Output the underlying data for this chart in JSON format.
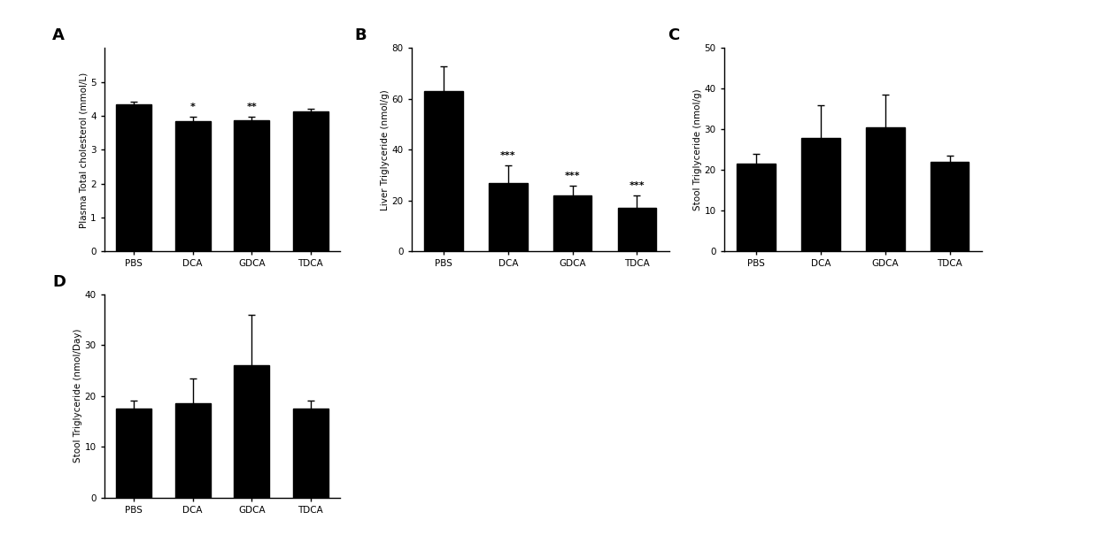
{
  "panel_A": {
    "label": "A",
    "categories": [
      "PBS",
      "DCA",
      "GDCA",
      "TDCA"
    ],
    "values": [
      4.35,
      3.85,
      3.88,
      4.12
    ],
    "errors": [
      0.08,
      0.12,
      0.1,
      0.08
    ],
    "ylabel": "Plasma Total cholesterol (mmol/L)",
    "ylim": [
      0,
      6
    ],
    "yticks": [
      0,
      1,
      2,
      3,
      4,
      5
    ],
    "significance": [
      "",
      "*",
      "**",
      ""
    ]
  },
  "panel_B": {
    "label": "B",
    "categories": [
      "PBS",
      "DCA",
      "GDCA",
      "TDCA"
    ],
    "values": [
      63,
      27,
      22,
      17
    ],
    "errors": [
      10,
      7,
      4,
      5
    ],
    "ylabel": "Liver Triglyceride (nmol/g)",
    "ylim": [
      0,
      80
    ],
    "yticks": [
      0,
      20,
      40,
      60,
      80
    ],
    "significance": [
      "",
      "***",
      "***",
      "***"
    ]
  },
  "panel_C": {
    "label": "C",
    "categories": [
      "PBS",
      "DCA",
      "GDCA",
      "TDCA"
    ],
    "values": [
      21.5,
      28,
      30.5,
      22
    ],
    "errors": [
      2.5,
      8,
      8,
      1.5
    ],
    "ylabel": "Stool Triglyceride (nmol/g)",
    "ylim": [
      0,
      50
    ],
    "yticks": [
      0,
      10,
      20,
      30,
      40,
      50
    ],
    "significance": [
      "",
      "",
      "",
      ""
    ]
  },
  "panel_D": {
    "label": "D",
    "categories": [
      "PBS",
      "DCA",
      "GDCA",
      "TDCA"
    ],
    "values": [
      17.5,
      18.5,
      26,
      17.5
    ],
    "errors": [
      1.5,
      5,
      10,
      1.5
    ],
    "ylabel": "Stool Triglyceride (nmol/Day)",
    "ylim": [
      0,
      40
    ],
    "yticks": [
      0,
      10,
      20,
      30,
      40
    ],
    "significance": [
      "",
      "",
      "",
      ""
    ]
  },
  "bar_color": "#000000",
  "bar_width": 0.6,
  "background_color": "#ffffff",
  "label_fontsize": 13,
  "tick_fontsize": 7.5,
  "ylabel_fontsize": 7.5,
  "sig_fontsize": 8
}
